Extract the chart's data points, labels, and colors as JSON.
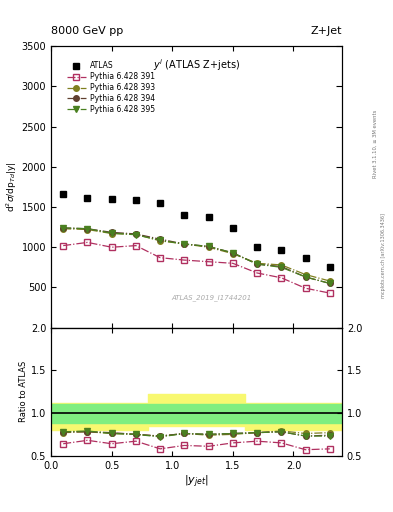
{
  "title_left": "8000 GeV pp",
  "title_right": "Z+Jet",
  "ylabel_main": "d$^2\\sigma$/dp$_{Td}$|y|",
  "ylabel_ratio": "Ratio to ATLAS",
  "xlabel": "|y$_{jet}$|",
  "annotation_main": "$y^i$ (ATLAS Z+jets)",
  "annotation_id": "ATLAS_2019_I1744201",
  "right_label": "Rivet 3.1.10, ≥ 3M events",
  "right_label2": "mcplots.cern.ch [arXiv:1306.3436]",
  "ylim_main": [
    0,
    3500
  ],
  "ylim_ratio": [
    0.5,
    2.0
  ],
  "xlim": [
    0.0,
    2.4
  ],
  "yticks_main": [
    500,
    1000,
    1500,
    2000,
    2500,
    3000,
    3500
  ],
  "yticks_ratio": [
    0.5,
    1.0,
    1.5,
    2.0
  ],
  "atlas_x": [
    0.1,
    0.3,
    0.5,
    0.7,
    0.9,
    1.1,
    1.3,
    1.5,
    1.7,
    1.9,
    2.1,
    2.3
  ],
  "atlas_y": [
    1660,
    1610,
    1600,
    1590,
    1550,
    1400,
    1380,
    1240,
    1000,
    960,
    870,
    750
  ],
  "p391_x": [
    0.1,
    0.3,
    0.5,
    0.7,
    0.9,
    1.1,
    1.3,
    1.5,
    1.7,
    1.9,
    2.1,
    2.3
  ],
  "p391_y": [
    1020,
    1060,
    1000,
    1020,
    870,
    840,
    820,
    800,
    680,
    620,
    490,
    430
  ],
  "p393_x": [
    0.1,
    0.3,
    0.5,
    0.7,
    0.9,
    1.1,
    1.3,
    1.5,
    1.7,
    1.9,
    2.1,
    2.3
  ],
  "p393_y": [
    1230,
    1220,
    1170,
    1160,
    1080,
    1040,
    1000,
    920,
    800,
    780,
    660,
    580
  ],
  "p394_x": [
    0.1,
    0.3,
    0.5,
    0.7,
    0.9,
    1.1,
    1.3,
    1.5,
    1.7,
    1.9,
    2.1,
    2.3
  ],
  "p394_y": [
    1240,
    1230,
    1185,
    1165,
    1100,
    1040,
    1010,
    930,
    790,
    760,
    630,
    550
  ],
  "p395_x": [
    0.1,
    0.3,
    0.5,
    0.7,
    0.9,
    1.1,
    1.3,
    1.5,
    1.7,
    1.9,
    2.1,
    2.3
  ],
  "p395_y": [
    1240,
    1230,
    1175,
    1155,
    1085,
    1040,
    1010,
    930,
    790,
    750,
    630,
    550
  ],
  "ratio_p391_y": [
    0.64,
    0.68,
    0.64,
    0.67,
    0.58,
    0.62,
    0.61,
    0.65,
    0.67,
    0.65,
    0.57,
    0.58
  ],
  "ratio_p393_y": [
    0.77,
    0.78,
    0.76,
    0.75,
    0.73,
    0.76,
    0.74,
    0.75,
    0.77,
    0.79,
    0.76,
    0.77
  ],
  "ratio_p394_y": [
    0.78,
    0.78,
    0.77,
    0.75,
    0.73,
    0.76,
    0.75,
    0.76,
    0.77,
    0.78,
    0.73,
    0.74
  ],
  "ratio_p395_y": [
    0.78,
    0.79,
    0.76,
    0.75,
    0.72,
    0.76,
    0.75,
    0.76,
    0.77,
    0.78,
    0.73,
    0.73
  ],
  "band_x": [
    0.0,
    0.8,
    0.8,
    1.6,
    1.6,
    2.4
  ],
  "band_green_lo": [
    0.88,
    0.88,
    0.88,
    0.88,
    0.88,
    0.88
  ],
  "band_green_hi": [
    1.1,
    1.1,
    1.1,
    1.1,
    1.1,
    1.1
  ],
  "band_yellow_lo": [
    0.8,
    0.8,
    0.85,
    0.85,
    0.8,
    0.8
  ],
  "band_yellow_hi": [
    1.12,
    1.12,
    1.22,
    1.22,
    1.12,
    1.12
  ],
  "color_391": "#b03060",
  "color_393": "#808020",
  "color_394": "#604030",
  "color_395": "#4a8020",
  "color_atlas": "black",
  "color_green": "#80ee80",
  "color_yellow": "#f8f870",
  "legend_entries": [
    "ATLAS",
    "Pythia 6.428 391",
    "Pythia 6.428 393",
    "Pythia 6.428 394",
    "Pythia 6.428 395"
  ]
}
